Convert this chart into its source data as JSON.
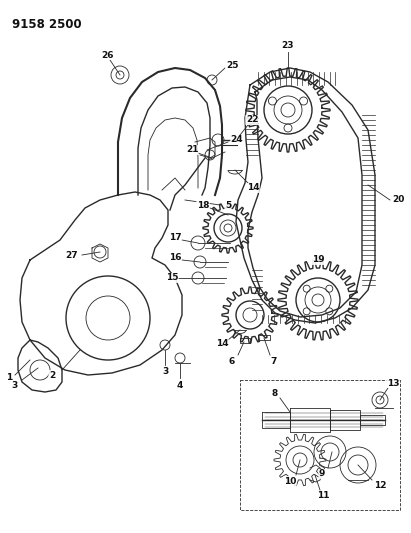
{
  "title": "9158 2500",
  "bg_color": "#ffffff",
  "fig_width": 4.11,
  "fig_height": 5.33,
  "dpi": 100,
  "line_color": "#2a2a2a",
  "label_color": "#111111"
}
